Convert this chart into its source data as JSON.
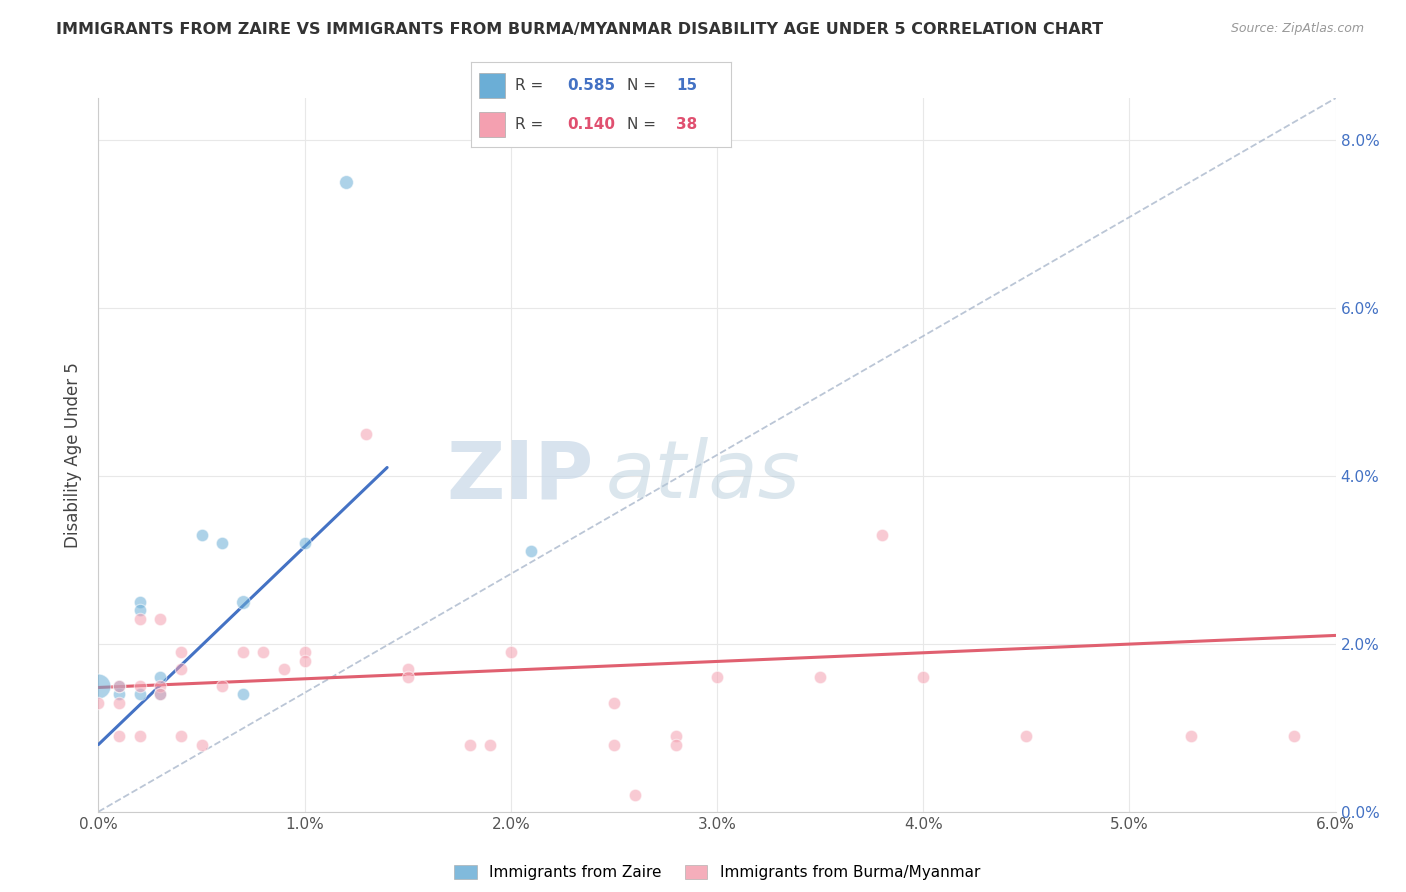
{
  "title": "IMMIGRANTS FROM ZAIRE VS IMMIGRANTS FROM BURMA/MYANMAR DISABILITY AGE UNDER 5 CORRELATION CHART",
  "source": "Source: ZipAtlas.com",
  "ylabel": "Disability Age Under 5",
  "xlim": [
    0.0,
    0.06
  ],
  "ylim": [
    0.0,
    0.085
  ],
  "xticks": [
    0.0,
    0.01,
    0.02,
    0.03,
    0.04,
    0.05,
    0.06
  ],
  "yticks": [
    0.0,
    0.02,
    0.04,
    0.06,
    0.08
  ],
  "background_color": "#ffffff",
  "grid_color": "#e8e8e8",
  "legend_R1": "0.585",
  "legend_N1": "15",
  "legend_R2": "0.140",
  "legend_N2": "38",
  "color_zaire": "#6baed6",
  "color_burma": "#f4a0b0",
  "zaire_points": [
    [
      0.0,
      0.015
    ],
    [
      0.001,
      0.014
    ],
    [
      0.001,
      0.015
    ],
    [
      0.002,
      0.014
    ],
    [
      0.002,
      0.025
    ],
    [
      0.002,
      0.024
    ],
    [
      0.003,
      0.016
    ],
    [
      0.003,
      0.014
    ],
    [
      0.005,
      0.033
    ],
    [
      0.006,
      0.032
    ],
    [
      0.007,
      0.025
    ],
    [
      0.007,
      0.014
    ],
    [
      0.01,
      0.032
    ],
    [
      0.012,
      0.075
    ],
    [
      0.021,
      0.031
    ]
  ],
  "zaire_sizes": [
    320,
    80,
    80,
    80,
    80,
    80,
    80,
    80,
    80,
    80,
    100,
    80,
    80,
    100,
    80
  ],
  "burma_points": [
    [
      0.0,
      0.013
    ],
    [
      0.001,
      0.015
    ],
    [
      0.001,
      0.013
    ],
    [
      0.001,
      0.009
    ],
    [
      0.002,
      0.023
    ],
    [
      0.002,
      0.015
    ],
    [
      0.002,
      0.009
    ],
    [
      0.003,
      0.015
    ],
    [
      0.003,
      0.023
    ],
    [
      0.003,
      0.014
    ],
    [
      0.004,
      0.019
    ],
    [
      0.004,
      0.017
    ],
    [
      0.004,
      0.009
    ],
    [
      0.005,
      0.008
    ],
    [
      0.006,
      0.015
    ],
    [
      0.007,
      0.019
    ],
    [
      0.008,
      0.019
    ],
    [
      0.009,
      0.017
    ],
    [
      0.01,
      0.019
    ],
    [
      0.01,
      0.018
    ],
    [
      0.013,
      0.045
    ],
    [
      0.015,
      0.017
    ],
    [
      0.015,
      0.016
    ],
    [
      0.018,
      0.008
    ],
    [
      0.019,
      0.008
    ],
    [
      0.02,
      0.019
    ],
    [
      0.025,
      0.013
    ],
    [
      0.025,
      0.008
    ],
    [
      0.026,
      0.002
    ],
    [
      0.028,
      0.009
    ],
    [
      0.028,
      0.008
    ],
    [
      0.03,
      0.016
    ],
    [
      0.035,
      0.016
    ],
    [
      0.038,
      0.033
    ],
    [
      0.04,
      0.016
    ],
    [
      0.045,
      0.009
    ],
    [
      0.053,
      0.009
    ],
    [
      0.058,
      0.009
    ]
  ],
  "burma_sizes": [
    80,
    80,
    80,
    80,
    80,
    80,
    80,
    80,
    80,
    80,
    80,
    80,
    80,
    80,
    80,
    80,
    80,
    80,
    80,
    80,
    80,
    80,
    80,
    80,
    80,
    80,
    80,
    80,
    80,
    80,
    80,
    80,
    80,
    80,
    80,
    80,
    80,
    80
  ],
  "zaire_line_x": [
    0.0,
    0.014
  ],
  "zaire_line_y": [
    0.008,
    0.041
  ],
  "burma_line_x": [
    0.0,
    0.06
  ],
  "burma_line_y": [
    0.0148,
    0.021
  ],
  "diagonal_line_x": [
    0.0,
    0.06
  ],
  "diagonal_line_y": [
    0.0,
    0.085
  ]
}
